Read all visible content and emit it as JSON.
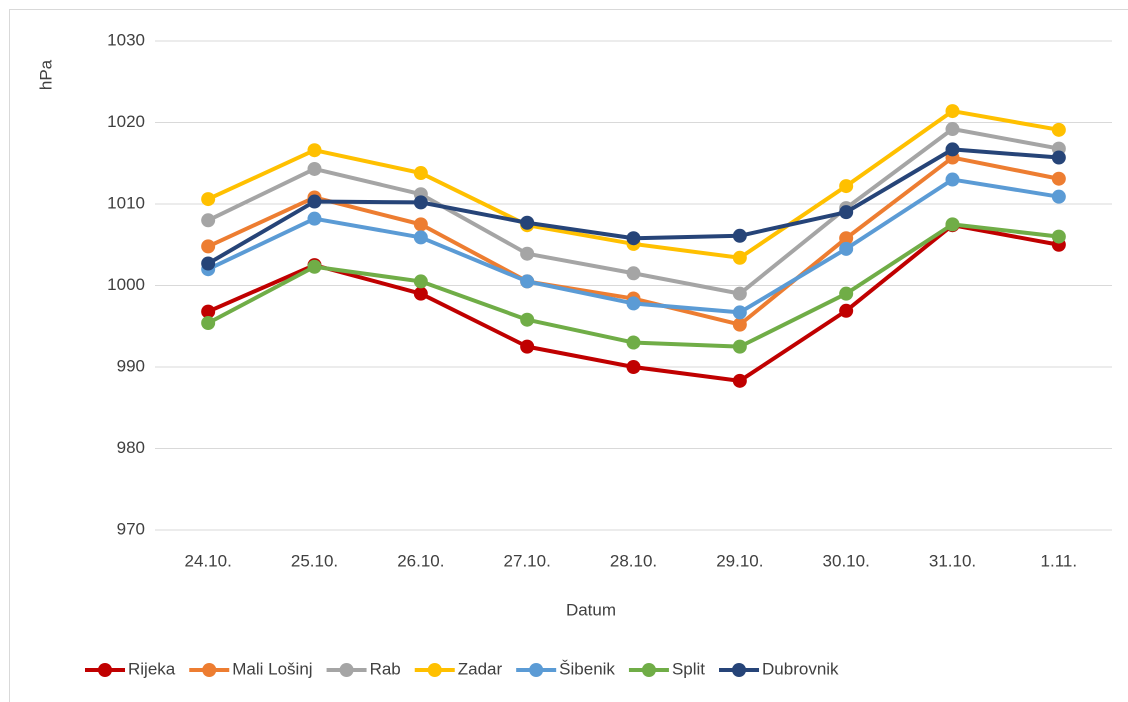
{
  "chart_data": {
    "type": "line",
    "x_label": "Datum",
    "y_label": "hPa",
    "categories": [
      "24.10.",
      "25.10.",
      "26.10.",
      "27.10.",
      "28.10.",
      "29.10.",
      "30.10.",
      "31.10.",
      "1.11."
    ],
    "series": [
      {
        "name": "Rijeka",
        "color": "#c00000",
        "values": [
          996.8,
          1002.5,
          999.0,
          992.5,
          990.0,
          988.3,
          996.9,
          1007.4,
          1005.0
        ]
      },
      {
        "name": "Mali Lošinj",
        "color": "#ed7d31",
        "values": [
          1004.8,
          1010.8,
          1007.5,
          1000.5,
          998.4,
          995.2,
          1005.8,
          1015.7,
          1013.1
        ]
      },
      {
        "name": "Rab",
        "color": "#a5a5a5",
        "values": [
          1008.0,
          1014.3,
          1011.2,
          1003.9,
          1001.5,
          999.0,
          1009.5,
          1019.2,
          1016.8
        ]
      },
      {
        "name": "Zadar",
        "color": "#ffc000",
        "values": [
          1010.6,
          1016.6,
          1013.8,
          1007.4,
          1005.1,
          1003.4,
          1012.2,
          1021.4,
          1019.1
        ]
      },
      {
        "name": "Šibenik",
        "color": "#5b9bd5",
        "values": [
          1002.0,
          1008.2,
          1005.9,
          1000.5,
          997.8,
          996.7,
          1004.5,
          1013.0,
          1010.9
        ]
      },
      {
        "name": "Split",
        "color": "#70ad47",
        "values": [
          995.4,
          1002.3,
          1000.5,
          995.8,
          993.0,
          992.5,
          999.0,
          1007.5,
          1006.0
        ]
      },
      {
        "name": "Dubrovnik",
        "color": "#264478",
        "values": [
          1002.7,
          1010.3,
          1010.2,
          1007.7,
          1005.8,
          1006.1,
          1009.0,
          1016.7,
          1015.7
        ]
      }
    ],
    "ylim": [
      970,
      1030
    ],
    "yticks": [
      970,
      980,
      990,
      1000,
      1010,
      1020,
      1030
    ],
    "grid": true,
    "legend": "bottom"
  }
}
